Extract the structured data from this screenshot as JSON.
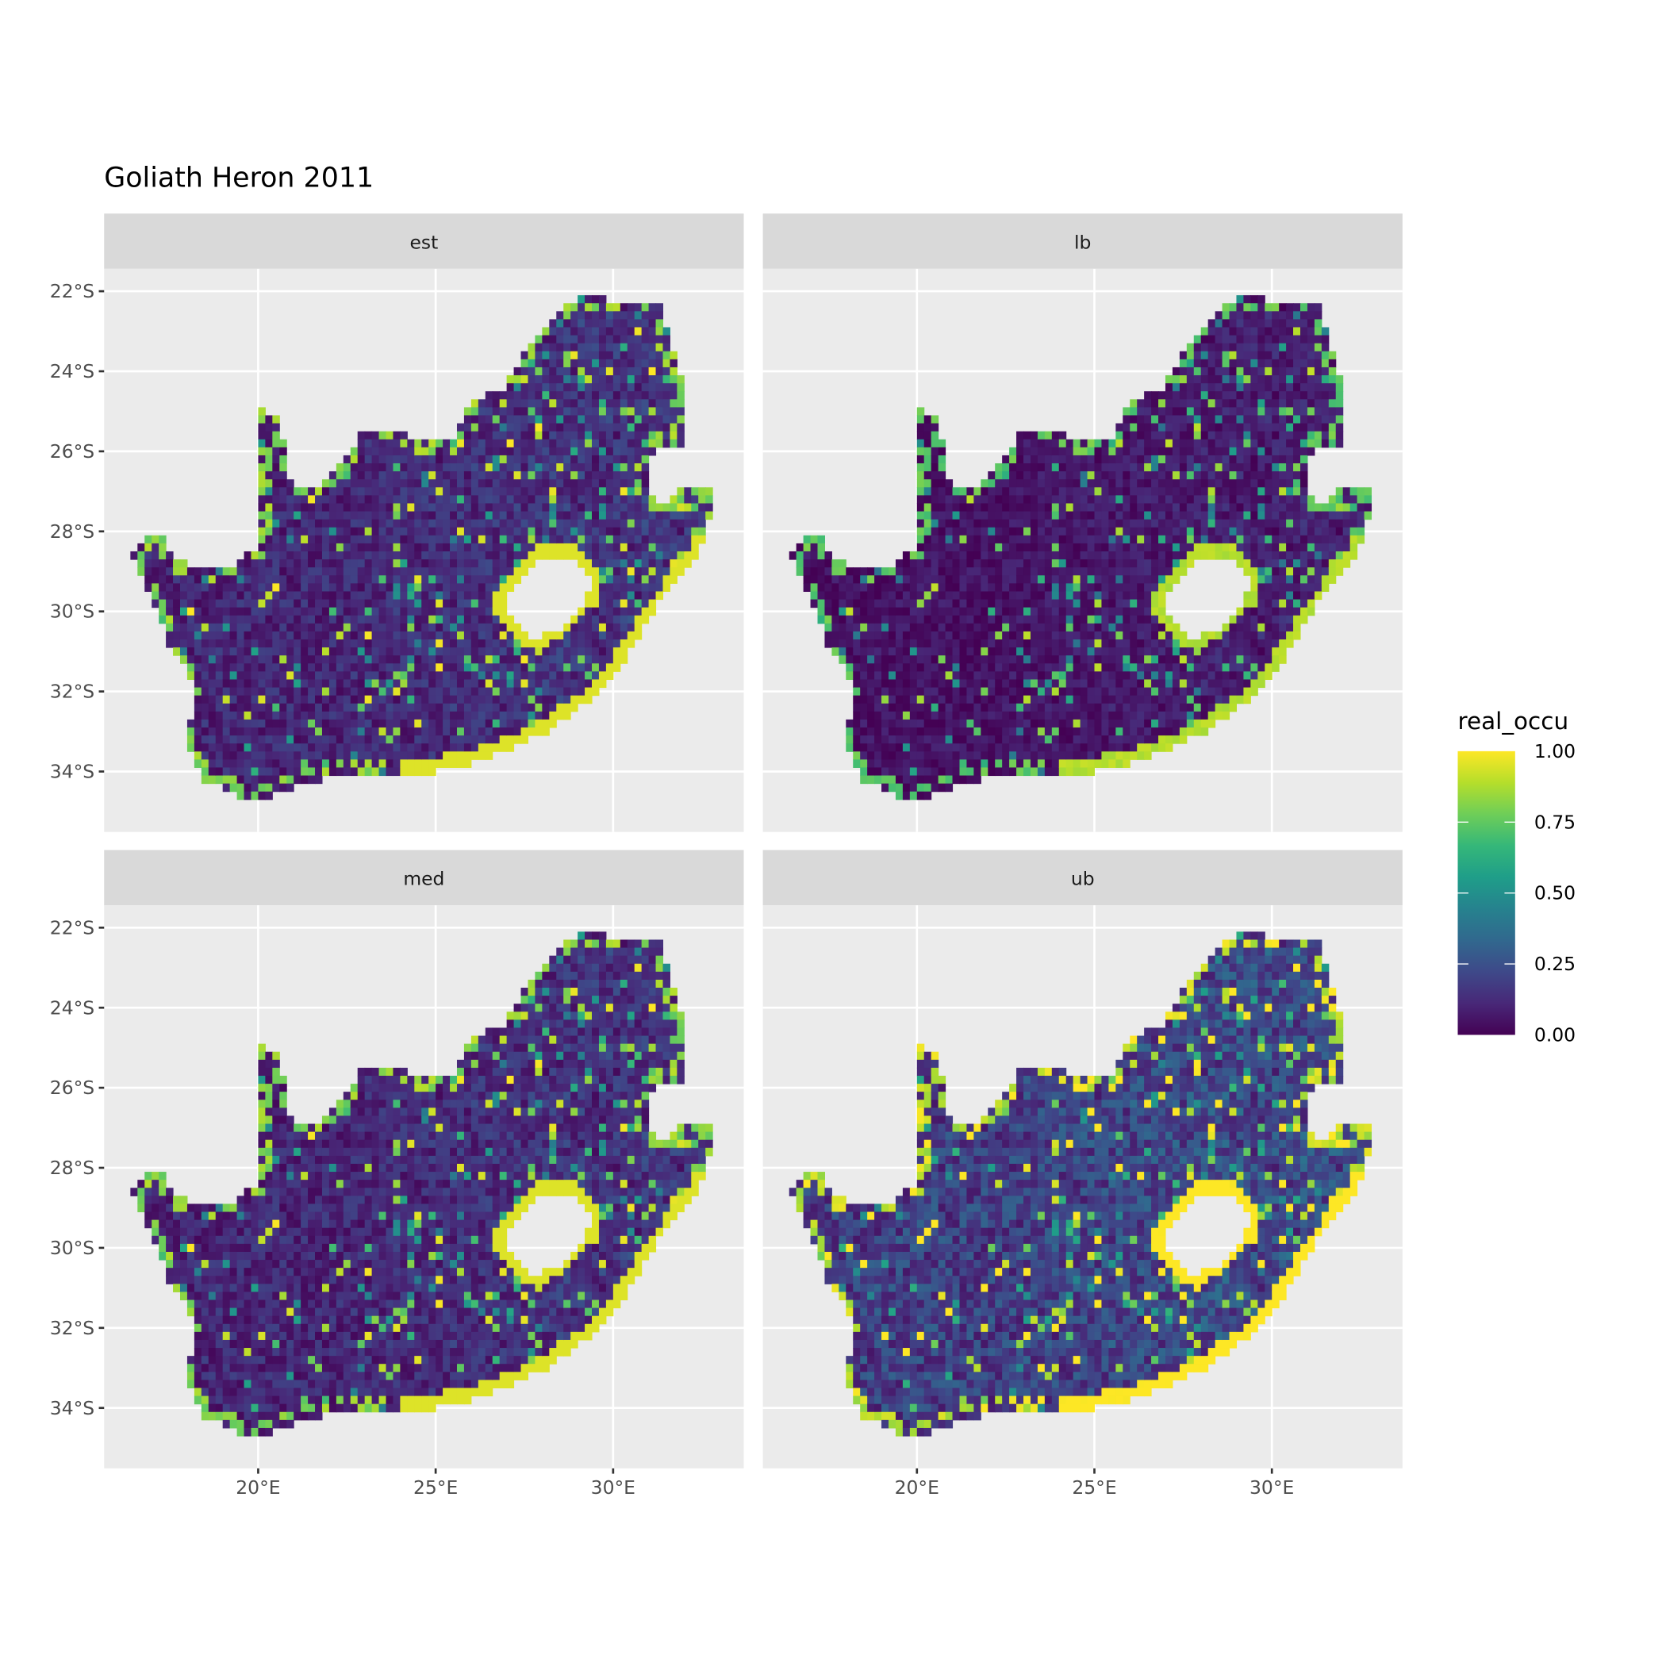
{
  "chart_data": {
    "type": "heatmap",
    "title": "Goliath Heron 2011",
    "xlabel": "",
    "ylabel": "",
    "facets": [
      "est",
      "lb",
      "med",
      "ub"
    ],
    "x_ticks": [
      {
        "value": 20,
        "label": "20°E"
      },
      {
        "value": 25,
        "label": "25°E"
      },
      {
        "value": 30,
        "label": "30°E"
      }
    ],
    "y_ticks": [
      {
        "value": -22,
        "label": "22°S"
      },
      {
        "value": -24,
        "label": "24°S"
      },
      {
        "value": -26,
        "label": "26°S"
      },
      {
        "value": -28,
        "label": "28°S"
      },
      {
        "value": -30,
        "label": "30°S"
      },
      {
        "value": -32,
        "label": "32°S"
      },
      {
        "value": -34,
        "label": "34°S"
      }
    ],
    "xlim": [
      15.66,
      33.68
    ],
    "ylim": [
      -35.51,
      -21.44
    ],
    "grid": true,
    "legend": {
      "title": "real_occu",
      "position": "right",
      "ticks": [
        {
          "value": 1.0,
          "label": "1.00"
        },
        {
          "value": 0.75,
          "label": "0.75"
        },
        {
          "value": 0.5,
          "label": "0.50"
        },
        {
          "value": 0.25,
          "label": "0.25"
        },
        {
          "value": 0.0,
          "label": "0.00"
        }
      ],
      "limits": [
        0,
        1
      ],
      "palette": "viridis"
    },
    "colors": {
      "panel_background": "#ebebeb",
      "strip_background": "#d9d9d9",
      "grid": "#ffffff",
      "viridis": [
        "#440154",
        "#482878",
        "#3e4989",
        "#31688e",
        "#26828e",
        "#1f9e89",
        "#35b779",
        "#6ece58",
        "#b5de2b",
        "#fde725"
      ]
    }
  }
}
